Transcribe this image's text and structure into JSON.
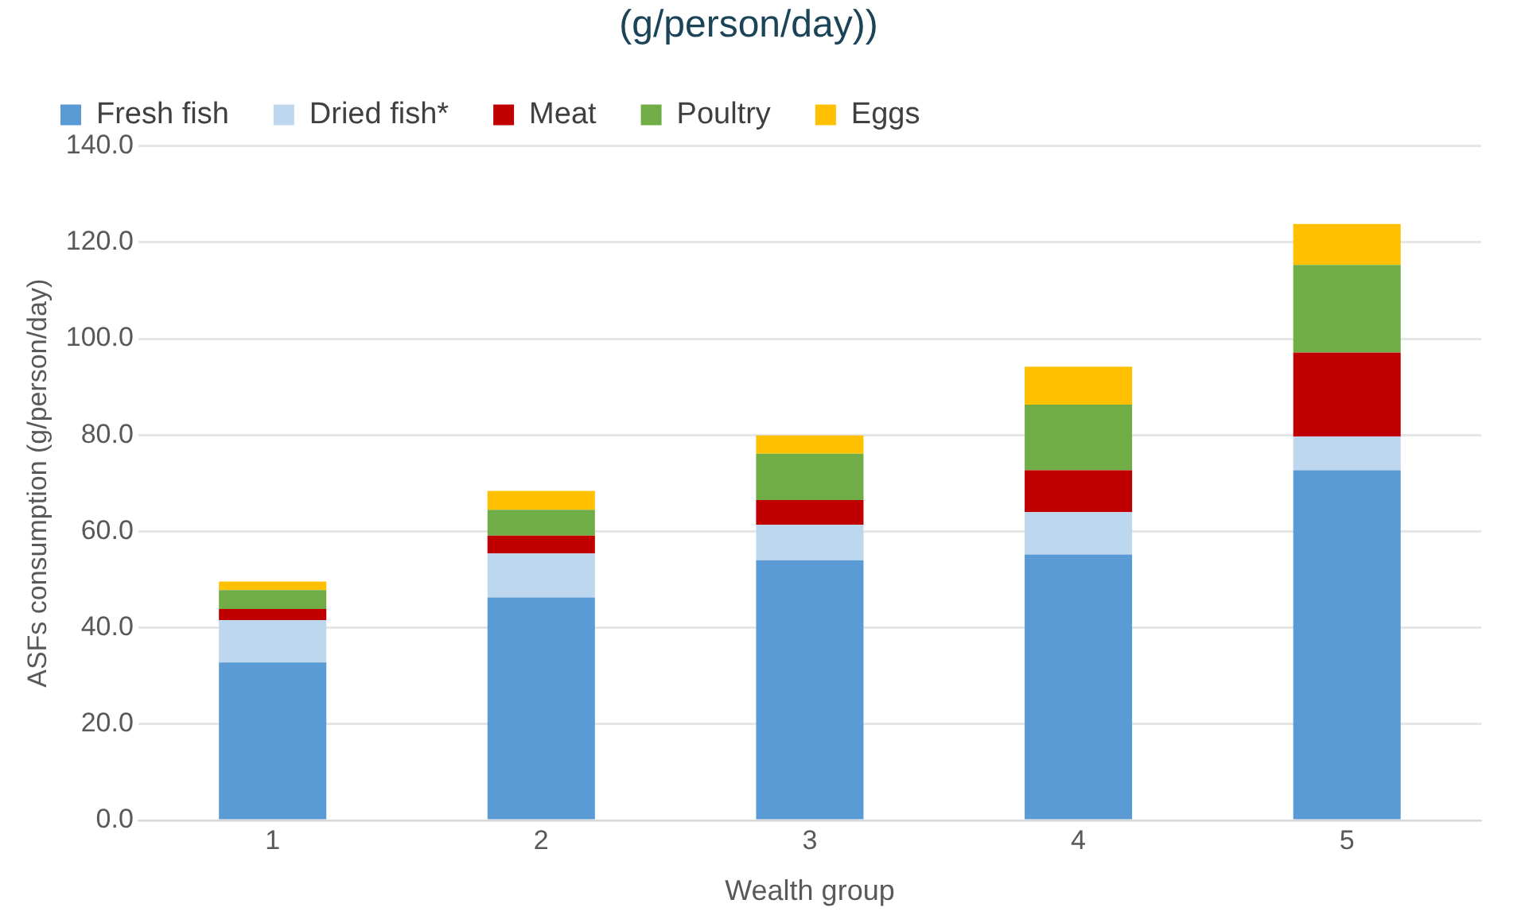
{
  "chart_data": {
    "type": "bar",
    "title": "(g/person/day))",
    "xlabel": "Wealth group",
    "ylabel": "ASFs consumption (g/person/day)",
    "categories": [
      "1",
      "2",
      "3",
      "4",
      "5"
    ],
    "stacked": true,
    "series": [
      {
        "name": "Fresh fish",
        "color": "#5b9bd5",
        "values": [
          32.8,
          46.3,
          54.0,
          55.2,
          72.7
        ]
      },
      {
        "name": "Dried fish*",
        "color": "#bdd7ee",
        "values": [
          8.8,
          9.1,
          7.4,
          8.8,
          7.0
        ]
      },
      {
        "name": "Meat",
        "color": "#c00000",
        "values": [
          2.3,
          3.7,
          5.1,
          8.7,
          17.4
        ]
      },
      {
        "name": "Poultry",
        "color": "#70ad47",
        "values": [
          3.9,
          5.4,
          9.6,
          13.6,
          18.2
        ]
      },
      {
        "name": "Eggs",
        "color": "#ffc000",
        "values": [
          1.8,
          3.9,
          3.8,
          7.9,
          8.5
        ]
      }
    ],
    "ylim": [
      0,
      140
    ],
    "yticks": [
      {
        "value": 0,
        "label": "0.0"
      },
      {
        "value": 20,
        "label": "20.0"
      },
      {
        "value": 40,
        "label": "40.0"
      },
      {
        "value": 60,
        "label": "60.0"
      },
      {
        "value": 80,
        "label": "80.0"
      },
      {
        "value": 100,
        "label": "100.0"
      },
      {
        "value": 120,
        "label": "120.0"
      },
      {
        "value": 140,
        "label": "140.0"
      }
    ],
    "grid": "y",
    "legend": "top left"
  }
}
